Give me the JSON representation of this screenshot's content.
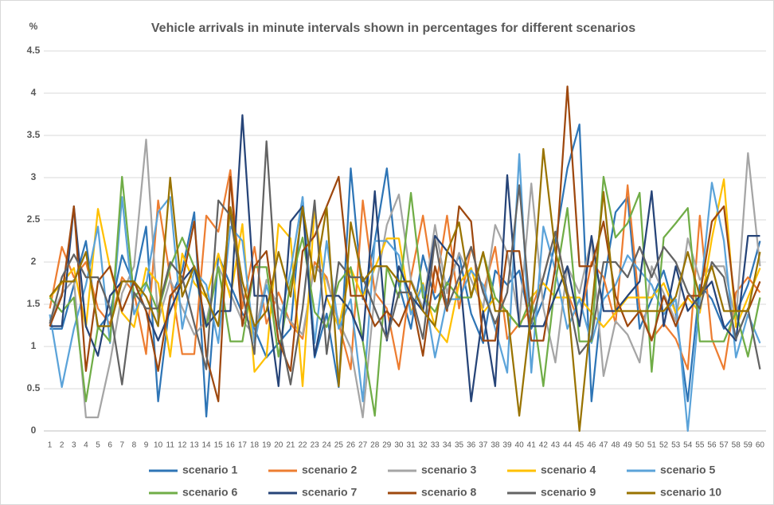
{
  "chart_data": {
    "type": "line",
    "title": "Vehicle arrivals in minute intervals shown in percentages for different scenarios",
    "y_label": "%",
    "categories": [
      1,
      2,
      3,
      4,
      5,
      6,
      7,
      8,
      9,
      10,
      11,
      12,
      13,
      14,
      15,
      16,
      17,
      18,
      19,
      20,
      21,
      22,
      23,
      24,
      25,
      26,
      27,
      28,
      29,
      30,
      31,
      32,
      33,
      34,
      35,
      36,
      37,
      38,
      39,
      40,
      41,
      42,
      43,
      44,
      45,
      46,
      47,
      48,
      49,
      50,
      51,
      52,
      53,
      54,
      55,
      56,
      57,
      58,
      59,
      60
    ],
    "ylim": [
      0,
      4.5
    ],
    "yticks": [
      0,
      0.5,
      1,
      1.5,
      2,
      2.5,
      3,
      3.5,
      4,
      4.5
    ],
    "grid": true,
    "legend": "bottom",
    "series": [
      {
        "name": "scenario 1",
        "color": "#2e75b6",
        "values": [
          1.21,
          1.21,
          1.73,
          2.25,
          1.21,
          1.39,
          2.08,
          1.73,
          2.42,
          0.35,
          1.56,
          1.9,
          2.59,
          0.17,
          2.08,
          1.73,
          1.39,
          1.21,
          0.87,
          1.04,
          1.21,
          2.77,
          0.87,
          1.39,
          0.52,
          3.11,
          1.56,
          2.25,
          3.11,
          1.73,
          1.21,
          2.08,
          1.56,
          1.73,
          2.08,
          1.39,
          1.04,
          1.9,
          1.73,
          1.9,
          1.21,
          1.56,
          2.25,
          3.11,
          3.63,
          0.35,
          1.73,
          2.59,
          2.77,
          1.21,
          1.56,
          1.9,
          1.39,
          0.35,
          1.73,
          1.56,
          1.21,
          1.39,
          1.73,
          2.25
        ]
      },
      {
        "name": "scenario 2",
        "color": "#ed7d31",
        "values": [
          1.45,
          2.18,
          1.82,
          2.0,
          1.45,
          1.27,
          1.82,
          1.64,
          0.91,
          2.73,
          1.82,
          0.91,
          0.91,
          2.55,
          2.36,
          3.09,
          1.45,
          2.18,
          1.27,
          1.64,
          1.27,
          1.09,
          2.0,
          1.82,
          1.27,
          0.73,
          2.73,
          1.64,
          1.45,
          0.73,
          1.82,
          2.55,
          1.64,
          2.55,
          1.45,
          2.18,
          1.64,
          2.18,
          1.09,
          1.27,
          1.45,
          1.82,
          2.36,
          1.64,
          1.27,
          2.0,
          1.82,
          1.27,
          2.91,
          1.45,
          1.09,
          1.27,
          1.09,
          0.73,
          2.55,
          1.09,
          0.73,
          1.64,
          1.82,
          1.64
        ]
      },
      {
        "name": "scenario 3",
        "color": "#a5a5a5",
        "values": [
          1.3,
          1.63,
          1.79,
          0.16,
          0.16,
          0.81,
          1.63,
          1.95,
          3.45,
          1.3,
          1.79,
          1.46,
          1.14,
          1.3,
          1.95,
          1.63,
          1.3,
          1.14,
          1.79,
          1.46,
          1.3,
          1.14,
          1.95,
          1.79,
          1.3,
          0.98,
          0.16,
          1.63,
          2.44,
          2.8,
          1.79,
          1.46,
          2.44,
          1.63,
          2.11,
          1.79,
          1.46,
          2.44,
          2.11,
          1.3,
          2.93,
          1.46,
          0.81,
          1.95,
          1.63,
          2.28,
          0.65,
          1.3,
          1.14,
          0.81,
          1.95,
          1.63,
          1.3,
          2.28,
          1.79,
          1.95,
          1.95,
          1.3,
          3.29,
          1.95
        ]
      },
      {
        "name": "scenario 4",
        "color": "#ffc000",
        "values": [
          1.58,
          1.75,
          1.93,
          1.23,
          2.63,
          1.93,
          1.4,
          1.23,
          1.93,
          1.75,
          0.88,
          2.1,
          1.75,
          1.58,
          2.1,
          1.58,
          2.45,
          0.7,
          0.88,
          2.45,
          2.28,
          0.53,
          2.63,
          1.58,
          1.23,
          1.93,
          1.58,
          1.93,
          2.28,
          2.28,
          1.4,
          1.75,
          1.23,
          1.05,
          1.75,
          1.93,
          1.4,
          1.58,
          1.4,
          1.23,
          1.58,
          1.75,
          1.58,
          1.58,
          1.58,
          1.4,
          1.23,
          1.4,
          1.58,
          1.58,
          1.58,
          1.75,
          1.4,
          1.58,
          1.4,
          2.28,
          2.98,
          1.23,
          1.58,
          1.93
        ]
      },
      {
        "name": "scenario 5",
        "color": "#5ba3d9",
        "values": [
          1.38,
          0.52,
          1.21,
          1.73,
          2.42,
          1.04,
          2.77,
          1.38,
          1.73,
          2.59,
          2.77,
          1.21,
          1.9,
          1.73,
          1.04,
          2.42,
          2.25,
          1.04,
          1.73,
          1.21,
          1.9,
          2.77,
          1.04,
          2.25,
          1.21,
          1.56,
          0.35,
          2.25,
          2.25,
          2.08,
          1.38,
          1.73,
          0.87,
          1.56,
          1.56,
          1.9,
          1.73,
          1.21,
          0.69,
          3.28,
          0.69,
          2.42,
          1.9,
          1.21,
          1.56,
          1.04,
          1.56,
          1.73,
          2.08,
          1.9,
          1.73,
          1.38,
          1.56,
          0.0,
          1.56,
          2.94,
          2.25,
          0.87,
          1.38,
          1.04
        ]
      },
      {
        "name": "scenario 6",
        "color": "#70ad47",
        "values": [
          1.58,
          1.41,
          1.58,
          0.35,
          1.23,
          1.06,
          3.01,
          1.58,
          1.76,
          1.41,
          1.94,
          2.29,
          1.94,
          1.23,
          1.94,
          1.06,
          1.06,
          1.94,
          1.94,
          0.88,
          1.76,
          2.29,
          1.41,
          1.23,
          1.76,
          1.94,
          1.06,
          0.18,
          1.94,
          1.58,
          2.82,
          1.58,
          1.41,
          1.76,
          1.58,
          1.58,
          2.11,
          1.58,
          1.41,
          1.23,
          1.58,
          0.53,
          1.76,
          2.64,
          1.06,
          1.06,
          3.01,
          2.29,
          2.46,
          2.82,
          0.7,
          2.29,
          2.46,
          2.64,
          1.06,
          1.06,
          1.06,
          1.41,
          0.88,
          1.58
        ]
      },
      {
        "name": "scenario 7",
        "color": "#264478",
        "values": [
          1.24,
          1.24,
          2.66,
          1.24,
          0.89,
          1.6,
          1.77,
          1.77,
          1.42,
          1.07,
          1.42,
          1.77,
          1.95,
          1.24,
          1.42,
          1.42,
          3.74,
          1.6,
          1.6,
          0.53,
          2.48,
          2.66,
          0.89,
          1.6,
          1.6,
          1.42,
          1.07,
          2.84,
          1.07,
          1.95,
          1.6,
          1.42,
          2.31,
          2.13,
          1.95,
          0.35,
          1.42,
          0.53,
          3.03,
          1.24,
          1.24,
          1.24,
          1.6,
          1.95,
          1.24,
          2.31,
          1.42,
          1.42,
          1.6,
          1.77,
          2.84,
          1.24,
          1.95,
          1.42,
          1.6,
          1.77,
          1.24,
          1.07,
          2.31,
          2.31
        ]
      },
      {
        "name": "scenario 8",
        "color": "#9e480e",
        "values": [
          1.24,
          1.6,
          2.66,
          0.71,
          1.77,
          1.95,
          1.42,
          1.77,
          1.42,
          0.71,
          1.6,
          1.77,
          2.48,
          0.89,
          0.35,
          3.01,
          1.24,
          1.95,
          2.13,
          1.07,
          0.71,
          2.13,
          2.31,
          2.66,
          3.01,
          1.6,
          1.6,
          1.24,
          1.42,
          1.24,
          1.6,
          0.89,
          1.95,
          1.42,
          2.66,
          2.48,
          1.07,
          1.07,
          2.13,
          2.13,
          1.07,
          1.07,
          1.95,
          4.08,
          1.95,
          1.95,
          2.48,
          1.6,
          1.24,
          1.42,
          1.07,
          1.6,
          1.24,
          1.6,
          1.6,
          2.48,
          2.66,
          1.42,
          1.42,
          1.77
        ]
      },
      {
        "name": "scenario 9",
        "color": "#636363",
        "values": [
          1.27,
          1.82,
          2.09,
          1.82,
          1.82,
          1.45,
          0.55,
          1.64,
          1.45,
          1.45,
          2.0,
          1.82,
          1.27,
          0.73,
          2.73,
          2.55,
          1.64,
          0.91,
          3.43,
          1.27,
          0.55,
          1.45,
          2.73,
          0.91,
          2.0,
          1.82,
          1.82,
          1.45,
          1.09,
          1.64,
          1.64,
          1.09,
          2.27,
          1.45,
          1.82,
          2.18,
          1.64,
          1.27,
          1.64,
          2.91,
          1.27,
          1.82,
          2.36,
          1.64,
          0.91,
          1.09,
          2.0,
          2.0,
          1.82,
          2.18,
          1.82,
          2.18,
          2.0,
          1.64,
          1.45,
          2.0,
          1.82,
          1.09,
          1.45,
          0.73
        ]
      },
      {
        "name": "scenario 10",
        "color": "#997300",
        "values": [
          1.59,
          1.77,
          1.77,
          2.12,
          1.24,
          1.24,
          1.77,
          1.77,
          1.59,
          1.24,
          3.0,
          1.59,
          1.95,
          1.59,
          1.24,
          2.65,
          1.77,
          1.24,
          1.42,
          2.12,
          1.59,
          2.65,
          1.77,
          2.65,
          0.53,
          2.47,
          1.77,
          1.95,
          1.95,
          1.77,
          1.77,
          1.42,
          1.24,
          2.12,
          2.47,
          1.59,
          2.12,
          1.42,
          1.42,
          0.18,
          1.42,
          3.34,
          2.12,
          1.59,
          0.0,
          1.42,
          2.83,
          1.42,
          1.42,
          1.42,
          1.42,
          1.42,
          1.59,
          2.12,
          1.59,
          1.95,
          1.42,
          1.42,
          1.42,
          2.12
        ]
      }
    ]
  }
}
